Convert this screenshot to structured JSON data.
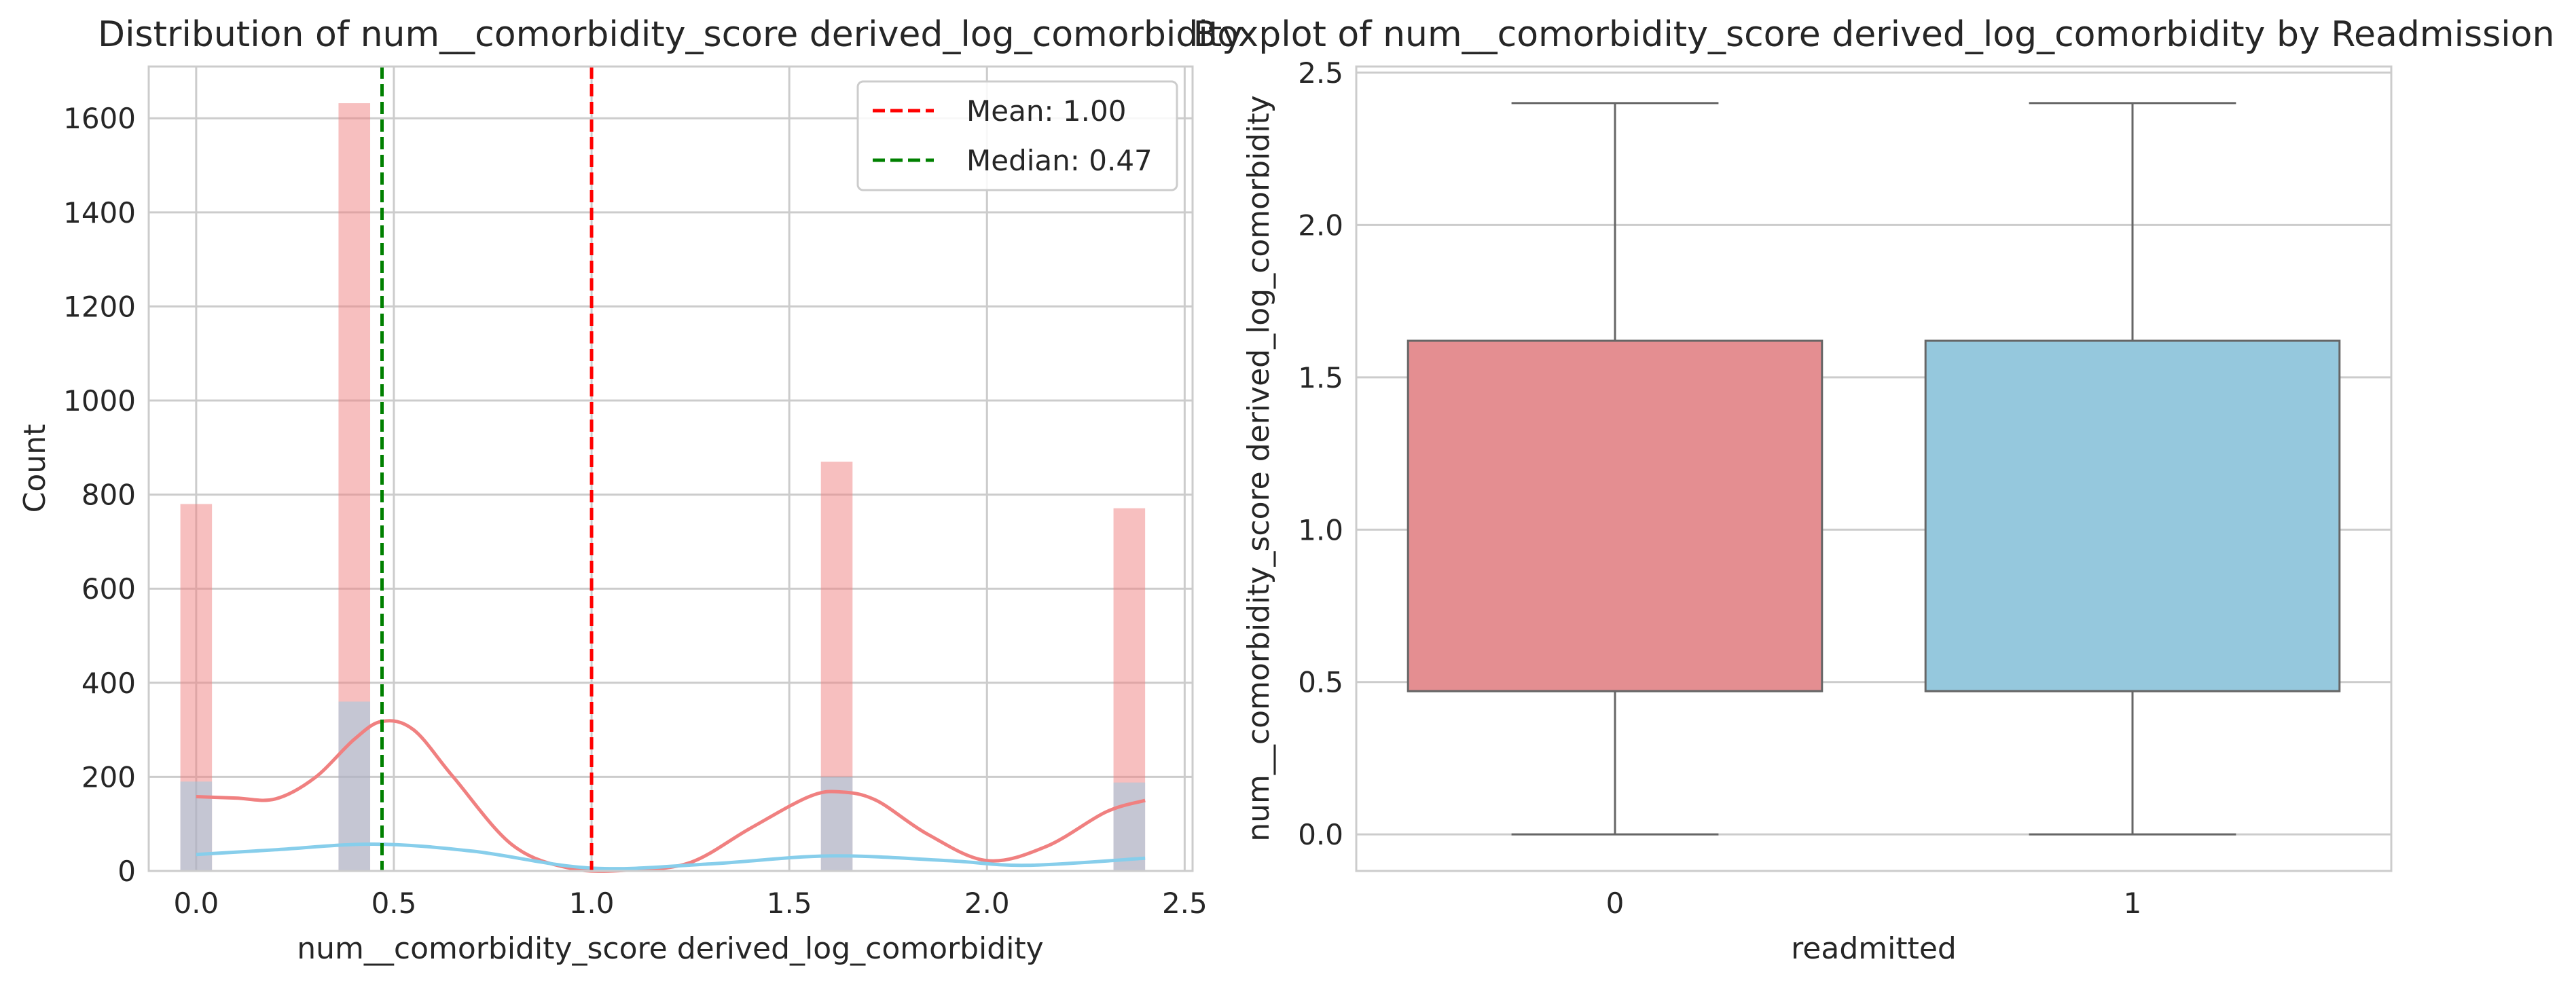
{
  "chart_data": [
    {
      "type": "histogram",
      "title": "Distribution of num__comorbidity_score derived_log_comorbidity",
      "xlabel": "num__comorbidity_score derived_log_comorbidity",
      "ylabel": "Count",
      "xlim": [
        -0.12,
        2.52
      ],
      "ylim": [
        0,
        1710
      ],
      "xticks": [
        0.0,
        0.5,
        1.0,
        1.5,
        2.0,
        2.5
      ],
      "xtick_labels": [
        "0.0",
        "0.5",
        "1.0",
        "1.5",
        "2.0",
        "2.5"
      ],
      "yticks": [
        0,
        200,
        400,
        600,
        800,
        1000,
        1200,
        1400,
        1600
      ],
      "ytick_labels": [
        "0",
        "200",
        "400",
        "600",
        "800",
        "1000",
        "1200",
        "1400",
        "1600"
      ],
      "grid": true,
      "bin_width": 0.08,
      "series": [
        {
          "color": "#f08080",
          "bins": [
            {
              "x": 0.0,
              "count": 780
            },
            {
              "x": 0.4,
              "count": 1632
            },
            {
              "x": 1.62,
              "count": 870
            },
            {
              "x": 2.36,
              "count": 771
            }
          ],
          "kde_x": [
            0.0,
            0.1,
            0.2,
            0.3,
            0.4,
            0.47,
            0.55,
            0.65,
            0.8,
            0.95,
            1.1,
            1.25,
            1.4,
            1.55,
            1.63,
            1.72,
            1.85,
            2.0,
            2.15,
            2.3,
            2.4
          ],
          "kde_y": [
            158,
            155,
            153,
            198,
            280,
            318,
            300,
            200,
            55,
            5,
            2,
            18,
            90,
            158,
            168,
            150,
            78,
            22,
            52,
            125,
            150
          ]
        },
        {
          "color": "#87ceeb",
          "bins": [
            {
              "x": 0.0,
              "count": 190
            },
            {
              "x": 0.4,
              "count": 360
            },
            {
              "x": 1.62,
              "count": 200
            },
            {
              "x": 2.36,
              "count": 188
            }
          ],
          "kde_x": [
            0.0,
            0.2,
            0.45,
            0.7,
            1.0,
            1.3,
            1.6,
            1.9,
            2.1,
            2.4
          ],
          "kde_y": [
            35,
            45,
            57,
            42,
            6,
            15,
            32,
            22,
            12,
            27
          ]
        }
      ],
      "reference_lines": [
        {
          "label": "Mean: 1.00",
          "x": 1.0,
          "color": "#ff0000",
          "style": "dashed"
        },
        {
          "label": "Median: 0.47",
          "x": 0.47,
          "color": "#008000",
          "style": "dashed"
        }
      ],
      "legend_position": "top-right"
    },
    {
      "type": "boxplot",
      "title": "Boxplot of num__comorbidity_score derived_log_comorbidity by Readmission",
      "xlabel": "readmitted",
      "ylabel": "num__comorbidity_score derived_log_comorbidity",
      "categories": [
        "0",
        "1"
      ],
      "ylim": [
        -0.12,
        2.52
      ],
      "yticks": [
        0.0,
        0.5,
        1.0,
        1.5,
        2.0,
        2.5
      ],
      "ytick_labels": [
        "0.0",
        "0.5",
        "1.0",
        "1.5",
        "2.0",
        "2.5"
      ],
      "grid": true,
      "boxes": [
        {
          "category": "0",
          "whisker_low": 0.0,
          "q1": 0.47,
          "median": 0.47,
          "q3": 1.62,
          "whisker_high": 2.4,
          "color": "#e48e91"
        },
        {
          "category": "1",
          "whisker_low": 0.0,
          "q1": 0.47,
          "median": 0.47,
          "q3": 1.62,
          "whisker_high": 2.4,
          "color": "#95c8dd"
        }
      ]
    }
  ]
}
